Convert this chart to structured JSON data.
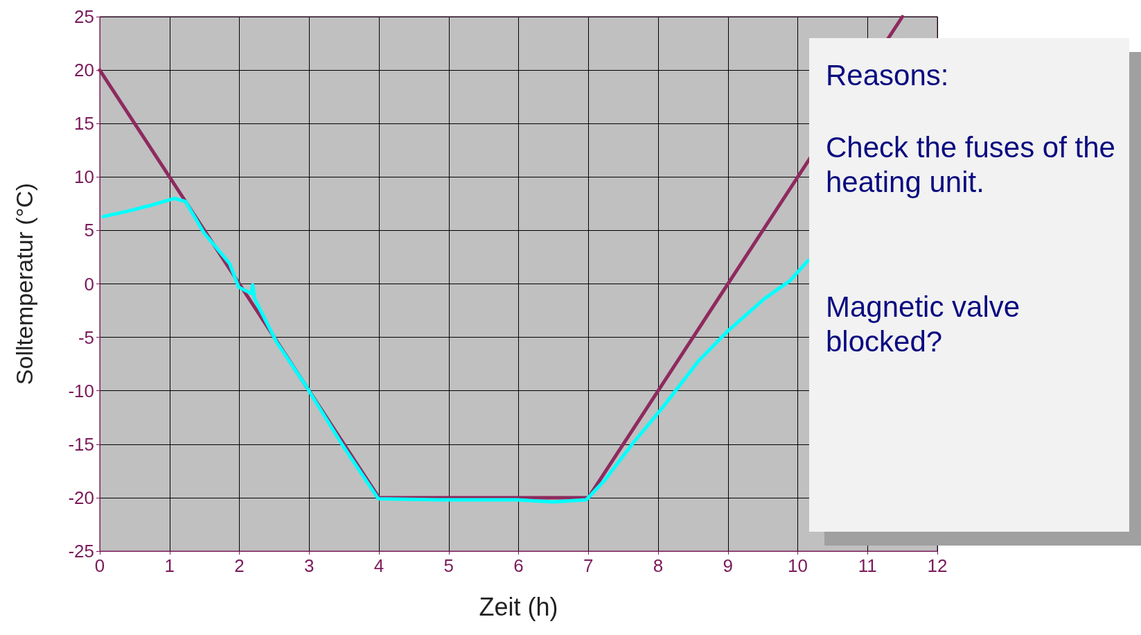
{
  "chart_data": {
    "type": "line",
    "xlabel": "Zeit (h)",
    "ylabel": "Solltemperatur (°C)",
    "xlim": [
      0,
      12
    ],
    "xticks": [
      0,
      1,
      2,
      3,
      4,
      5,
      6,
      7,
      8,
      9,
      10,
      11,
      12
    ],
    "ylim": [
      -25,
      25
    ],
    "yticks": [
      -25,
      -20,
      -15,
      -10,
      -5,
      0,
      5,
      10,
      15,
      20,
      25
    ],
    "grid": true,
    "marker": "none",
    "line_style": "solid",
    "series": [
      {
        "color": "#8e2a5e",
        "x": [
          0,
          4,
          7,
          11.5
        ],
        "values": [
          20,
          -20,
          -20,
          25
        ]
      },
      {
        "color": "#00ffff",
        "x": [
          0.05,
          0.4,
          0.76,
          1.07,
          1.23,
          1.49,
          1.86,
          1.99,
          2.17,
          2.19,
          2.22,
          2.53,
          2.95,
          3.47,
          3.99,
          4.83,
          5.97,
          6.5,
          6.97,
          7.23,
          7.64,
          8.06,
          8.58,
          9.0,
          9.52,
          9.89,
          10.15
        ],
        "values": [
          6.3,
          6.8,
          7.4,
          8.0,
          7.7,
          4.8,
          1.9,
          -0.3,
          -0.9,
          -0.1,
          -1.4,
          -5.4,
          -9.5,
          -15,
          -20.1,
          -20.2,
          -20.2,
          -20.4,
          -20.2,
          -18.4,
          -14.9,
          -11.6,
          -7.2,
          -4.4,
          -1.4,
          0.3,
          2.2
        ]
      }
    ],
    "annotations": [
      "Reasons:",
      "Check the fuses of the heating unit.",
      "Magnetic valve blocked?"
    ]
  }
}
